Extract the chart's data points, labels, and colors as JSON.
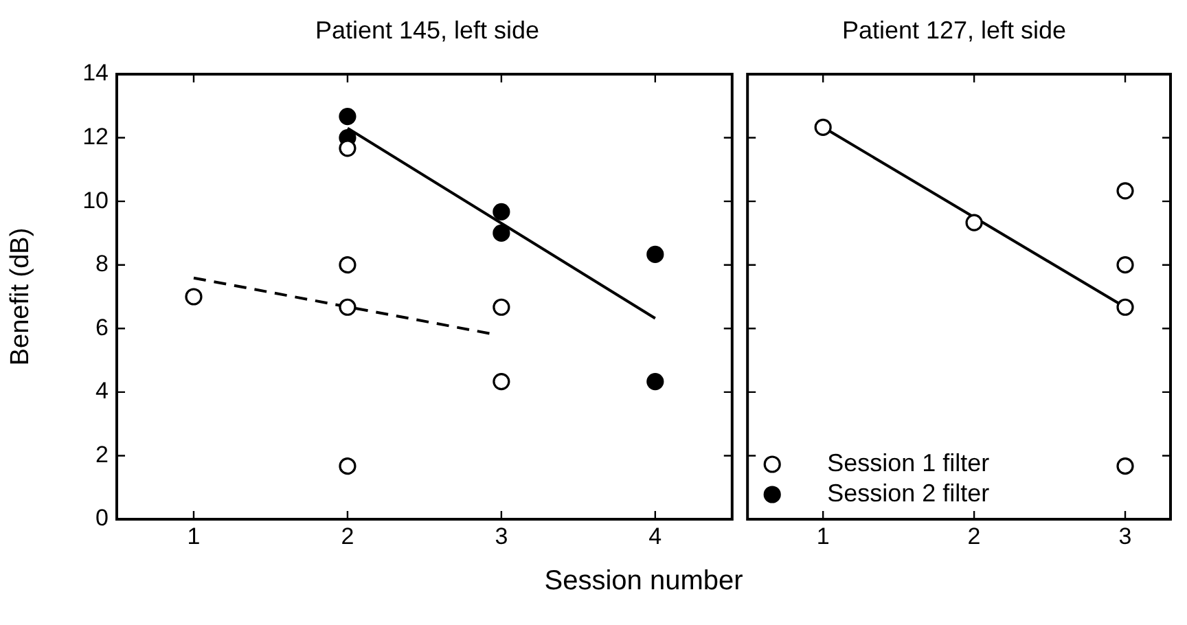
{
  "chart_data": [
    {
      "type": "scatter",
      "title": "Patient 145, left side",
      "xlabel": "Session number",
      "ylabel": "Benefit (dB)",
      "xlim": [
        0.5,
        4.5
      ],
      "xticks": [
        1,
        2,
        3,
        4
      ],
      "ylim": [
        0,
        14
      ],
      "yticks": [
        0,
        2,
        4,
        6,
        8,
        10,
        12,
        14
      ],
      "marker": "circle",
      "series": [
        {
          "color": "#ffffff",
          "x": [
            1,
            2,
            2,
            2,
            2,
            3,
            3
          ],
          "values": [
            7,
            11.67,
            8,
            6.67,
            1.67,
            6.67,
            4.33
          ]
        },
        {
          "color": "#000000",
          "x": [
            2,
            2,
            3,
            3,
            4,
            4
          ],
          "values": [
            12.67,
            12,
            9.67,
            9,
            8.33,
            4.33
          ]
        },
        {
          "type": "line",
          "color": "#000000",
          "line_style": "dashed",
          "marker": "none",
          "x": [
            1,
            2.95
          ],
          "values": [
            7.59,
            5.82
          ]
        },
        {
          "type": "line",
          "color": "#000000",
          "line_style": "solid",
          "marker": "none",
          "x": [
            2,
            4
          ],
          "values": [
            12.3,
            6.32
          ]
        }
      ]
    },
    {
      "type": "scatter",
      "title": "Patient 127, left side",
      "xlim": [
        0.5,
        3.3
      ],
      "xticks": [
        1,
        2,
        3
      ],
      "ylim": [
        0,
        14
      ],
      "yticks": [
        0,
        2,
        4,
        6,
        8,
        10,
        12,
        14
      ],
      "tick_labels": "x",
      "marker": "circle",
      "legend": "bottom left",
      "series": [
        {
          "name": "Session 1 filter",
          "color": "#ffffff",
          "x": [
            1,
            2,
            3,
            3,
            3,
            3
          ],
          "values": [
            12.33,
            9.33,
            10.33,
            8,
            6.67,
            1.67
          ]
        },
        {
          "name": "Session 2 filter",
          "color": "#000000"
        },
        {
          "type": "line",
          "color": "#000000",
          "line_style": "solid",
          "marker": "none",
          "x": [
            1,
            3
          ],
          "values": [
            12.33,
            6.67
          ]
        }
      ]
    }
  ]
}
